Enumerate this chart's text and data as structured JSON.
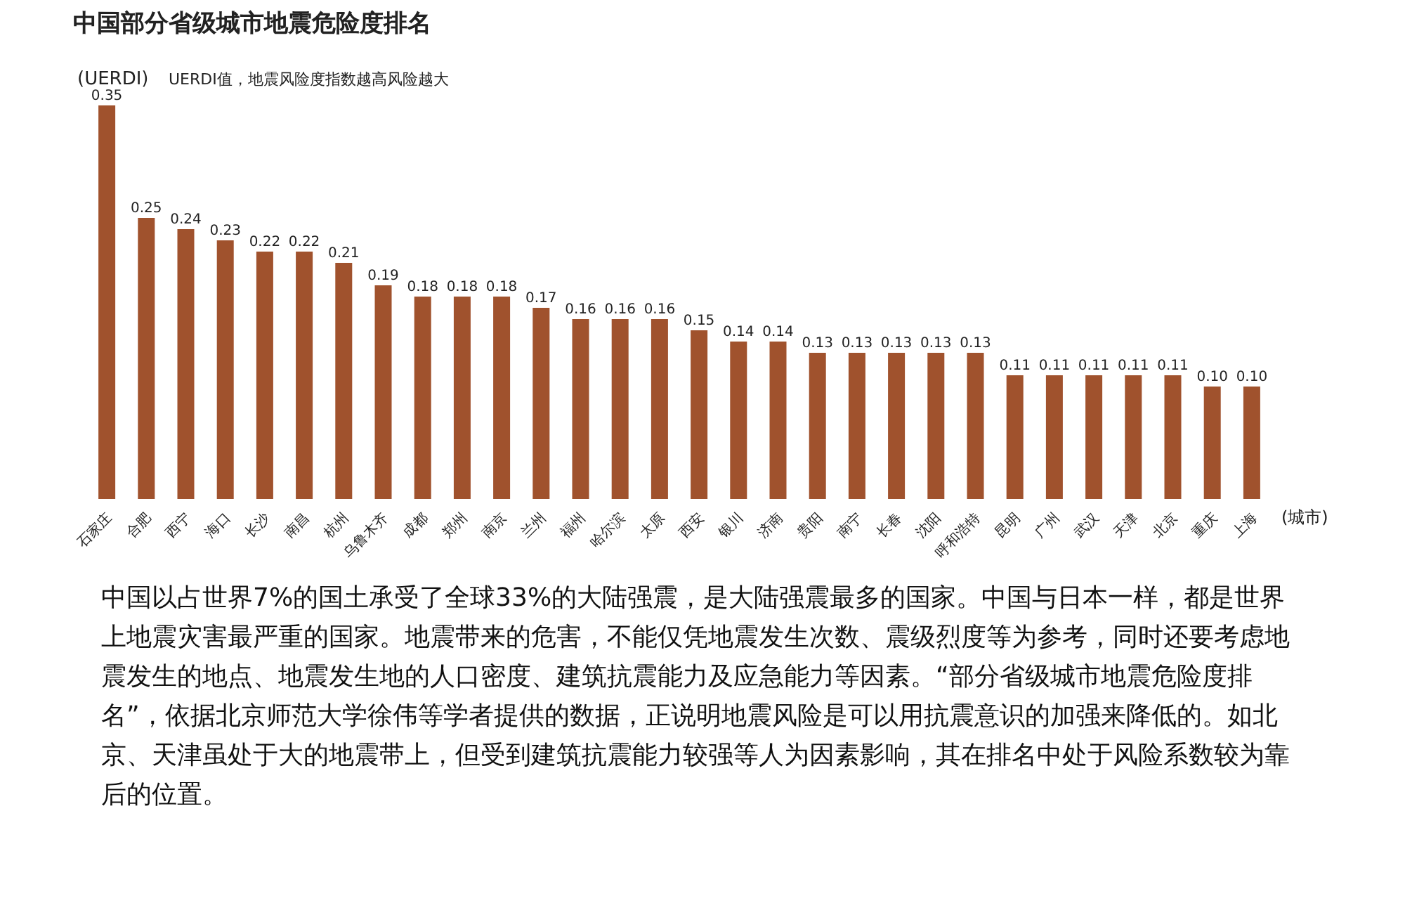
{
  "chart_data": {
    "type": "bar",
    "title": "中国部分省级城市地震危险度排名",
    "subtitle": "UERDI值，地震风险度指数越高风险越大",
    "ylabel": "(UERDI)",
    "xlabel": "(城市)",
    "categories": [
      "石家庄",
      "合肥",
      "西宁",
      "海口",
      "长沙",
      "南昌",
      "杭州",
      "乌鲁木齐",
      "成都",
      "郑州",
      "南京",
      "兰州",
      "福州",
      "哈尔滨",
      "太原",
      "西安",
      "银川",
      "济南",
      "贵阳",
      "南宁",
      "长春",
      "沈阳",
      "呼和浩特",
      "昆明",
      "广州",
      "武汉",
      "天津",
      "北京",
      "重庆",
      "上海"
    ],
    "values": [
      0.35,
      0.25,
      0.24,
      0.23,
      0.22,
      0.22,
      0.21,
      0.19,
      0.18,
      0.18,
      0.18,
      0.17,
      0.16,
      0.16,
      0.16,
      0.15,
      0.14,
      0.14,
      0.13,
      0.13,
      0.13,
      0.13,
      0.13,
      0.11,
      0.11,
      0.11,
      0.11,
      0.11,
      0.1,
      0.1
    ],
    "value_labels": [
      "0.35",
      "0.25",
      "0.24",
      "0.23",
      "0.22",
      "0.22",
      "0.21",
      "0.19",
      "0.18",
      "0.18",
      "0.18",
      "0.17",
      "0.16",
      "0.16",
      "0.16",
      "0.15",
      "0.14",
      "0.14",
      "0.13",
      "0.13",
      "0.13",
      "0.13",
      "0.13",
      "0.11",
      "0.11",
      "0.11",
      "0.11",
      "0.11",
      "0.10",
      "0.10"
    ],
    "color": "#a0522d",
    "annotations": [
      "中国以占世界7%的国土承受了全球33%的大陆强震，是大陆强震最多的国家。中国与日本一样，都是世界上地震灾害最严重的国家。地震带来的危害，不能仅凭地震发生次数、震级烈度等为参考，同时还要考虑地震发生的地点、地震发生地的人口密度、建筑抗震能力及应急能力等因素。“部分省级城市地震危险度排名”，依据北京师范大学徐伟等学者提供的数据，正说明地震风险是可以用抗震意识的加强来降低的。如北京、天津虽处于大的地震带上，但受到建筑抗震能力较强等人为因素影响，其在排名中处于风险系数较为靠后的位置。"
    ]
  }
}
